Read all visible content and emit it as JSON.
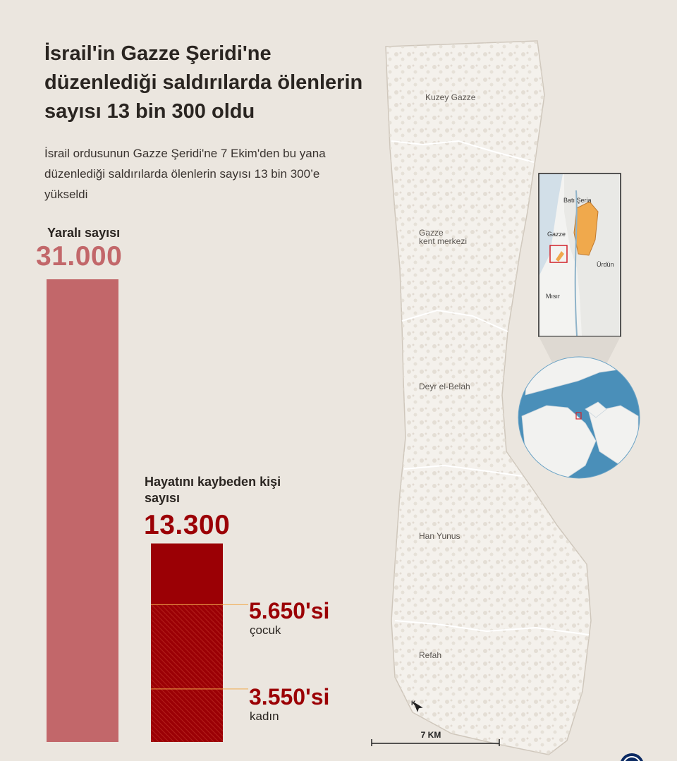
{
  "title": "İsrail'in Gazze Şeridi'ne düzenlediği saldırılarda ölenlerin sayısı 13 bin 300 oldu",
  "subtitle": "İsrail ordusunun Gazze Şeridi'ne 7 Ekim'den bu yana düzenlediği saldırılarda ölenlerin sayısı 13 bin 300’e yükseldi",
  "chart_data": {
    "type": "bar",
    "categories": [
      "Yaralı sayısı",
      "Hayatını kaybeden kişi sayısı"
    ],
    "values": [
      31000,
      13300
    ],
    "value_labels": [
      "31.000",
      "13.300"
    ],
    "breakdown": [
      {
        "name": "çocuk",
        "value": 5650,
        "value_label": "5.650'si"
      },
      {
        "name": "kadın",
        "value": 3550,
        "value_label": "3.550'si"
      }
    ],
    "colors": {
      "injured": "#c2676a",
      "dead": "#9b0005",
      "hatch": "#b3201c"
    }
  },
  "map": {
    "regions": [
      "Kuzey Gazze",
      "Gazze kent merkezi",
      "Deyr el-Belah",
      "Han Yunus",
      "Refah"
    ],
    "region_lines": [
      [
        "Kuzey Gazze"
      ],
      [
        "Gazze",
        "kent merkezi"
      ],
      [
        "Deyr el-Belah"
      ],
      [
        "Han Yunus"
      ],
      [
        "Refah"
      ]
    ],
    "scale_label": "7 KM",
    "inset_labels": {
      "west_bank": "Batı Şeria",
      "gaza": "Gazze",
      "jordan": "Ürdün",
      "egypt": "Mısır"
    },
    "colors": {
      "land": "#f4f1ec",
      "texture": "#dcd5cc",
      "west_bank": "#f0a94c",
      "highlight": "#d2232a",
      "ocean": "#4a8fb9"
    },
    "icons": [
      "north-arrow-icon",
      "globe-icon",
      "agency-logo-icon"
    ]
  }
}
